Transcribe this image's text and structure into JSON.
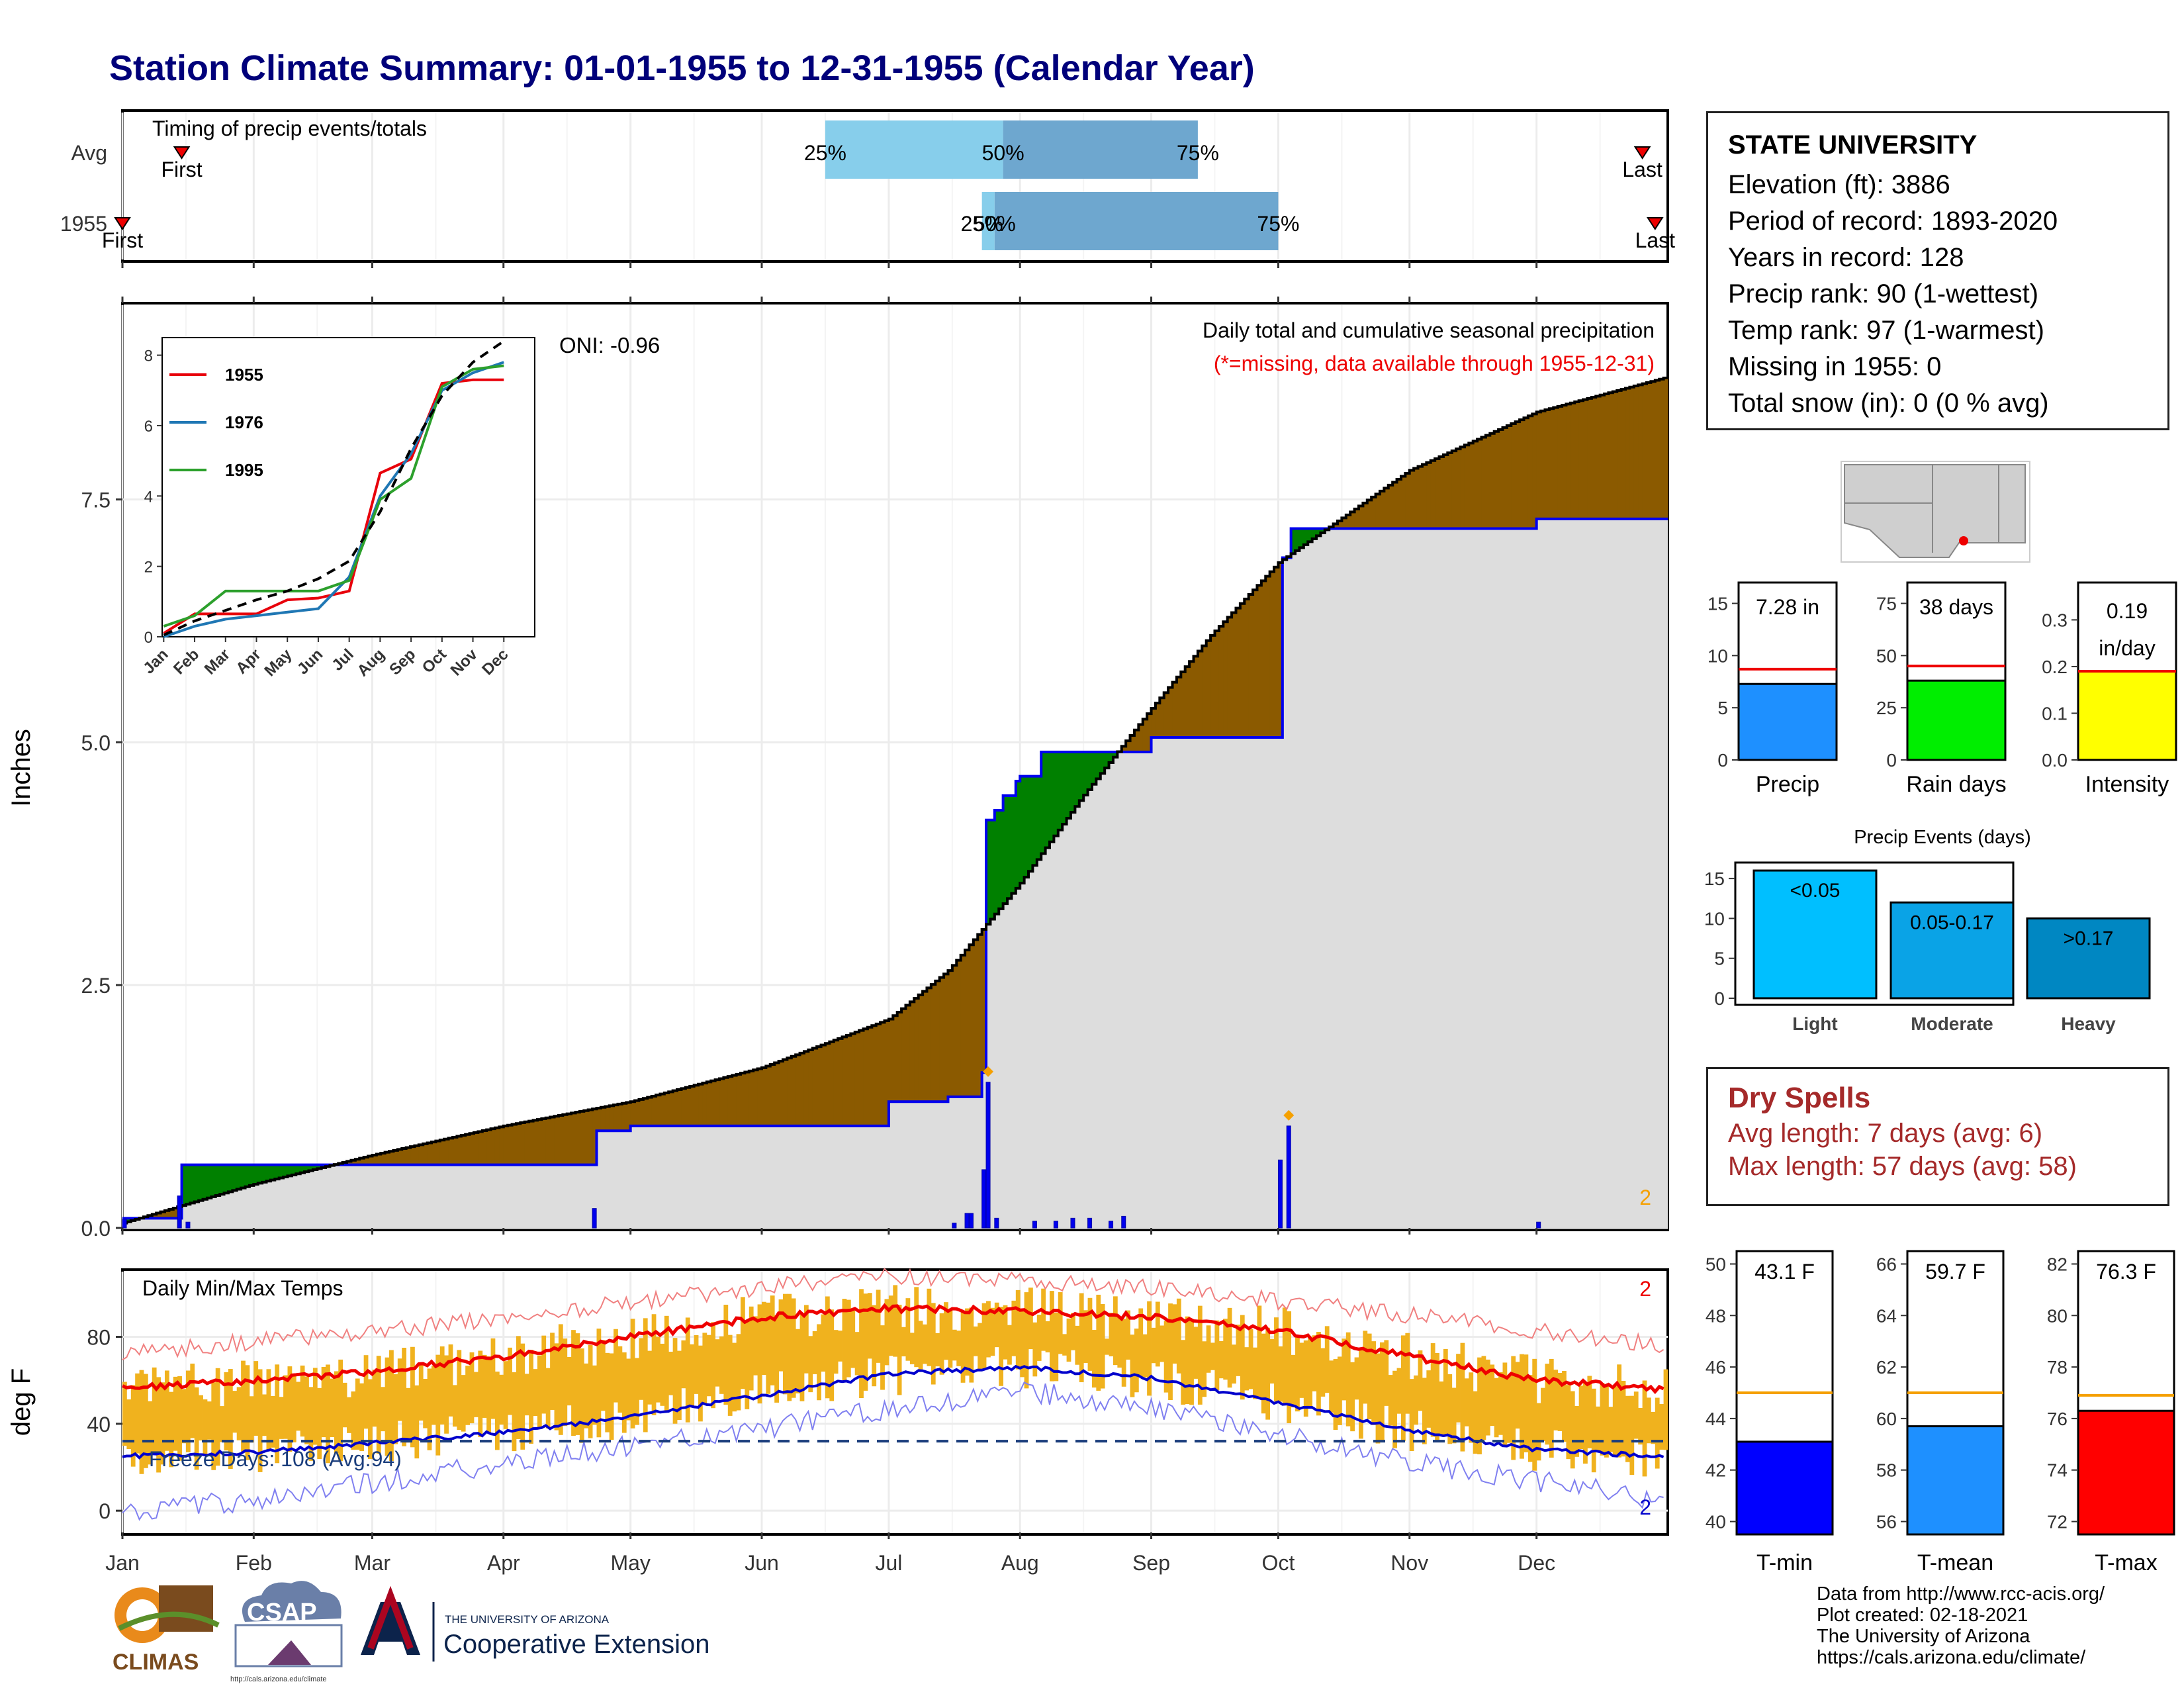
{
  "title": "Station Climate Summary: 01-01-1955 to 12-31-1955 (Calendar Year)",
  "timing": {
    "label": "Timing of precip events/totals",
    "rows": [
      "Avg",
      "1955"
    ],
    "avg": {
      "first": "Jan 15",
      "q25": "Jun 16",
      "q50": "Jul 28",
      "q75": "Sep 12",
      "last": "Dec 26"
    },
    "y1955": {
      "first": "Jan 1",
      "q25": "Jul 23",
      "q50": "Jul 26",
      "q75": "Oct 1",
      "last": "Dec 29"
    },
    "marks": {
      "first": "First",
      "last": "Last",
      "q25": "25%",
      "q50": "50%",
      "q75": "75%"
    }
  },
  "main": {
    "ylabel": "Inches",
    "yticks": [
      "0.0",
      "2.5",
      "5.0",
      "7.5"
    ],
    "caption": "Daily total and cumulative seasonal precipitation",
    "missing_note": "(*=missing, data available through 1955-12-31)",
    "oni": "ONI: -0.96",
    "corner": "2",
    "months": [
      "Jan",
      "Feb",
      "Mar",
      "Apr",
      "May",
      "Jun",
      "Jul",
      "Aug",
      "Sep",
      "Oct",
      "Nov",
      "Dec"
    ]
  },
  "chart_data": [
    {
      "type": "area",
      "caption": "Daily total and cumulative seasonal precipitation",
      "x_unit": "date (1955)",
      "ylabel": "Inches",
      "ylim": [
        0,
        9.5
      ],
      "series": [
        {
          "name": "cumulative observed 1955",
          "x": [
            "Jan 1",
            "Jan 14",
            "Jan 15",
            "Apr 22",
            "Apr 23",
            "May 1",
            "Jul 1",
            "Jul 15",
            "Jul 23",
            "Jul 24",
            "Jul 26",
            "Jul 28",
            "Jul 31",
            "Aug 1",
            "Aug 6",
            "Sep 1",
            "Oct 1",
            "Oct 2",
            "Oct 4",
            "Dec 1",
            "Dec 31"
          ],
          "y": [
            0.1,
            0.1,
            0.65,
            0.65,
            1.0,
            1.05,
            1.3,
            1.35,
            1.6,
            4.2,
            4.3,
            4.45,
            4.6,
            4.65,
            4.9,
            5.05,
            5.05,
            6.9,
            7.2,
            7.3,
            7.3
          ]
        },
        {
          "name": "cumulative average",
          "x": [
            "Jan 1",
            "Feb 1",
            "Mar 1",
            "Apr 1",
            "May 1",
            "Jun 1",
            "Jul 1",
            "Jul 15",
            "Aug 1",
            "Aug 15",
            "Sep 1",
            "Sep 15",
            "Oct 1",
            "Nov 1",
            "Dec 1",
            "Dec 31"
          ],
          "y": [
            0.05,
            0.45,
            0.75,
            1.05,
            1.3,
            1.65,
            2.15,
            2.65,
            3.55,
            4.4,
            5.35,
            6.1,
            6.85,
            7.8,
            8.4,
            8.75
          ]
        },
        {
          "name": "daily precip",
          "x": [
            "Jan 1",
            "Jan 14",
            "Jan 16",
            "Apr 22",
            "Jul 16",
            "Jul 19",
            "Jul 20",
            "Jul 23",
            "Jul 24",
            "Jul 26",
            "Aug 4",
            "Aug 9",
            "Aug 13",
            "Aug 17",
            "Aug 22",
            "Aug 25",
            "Oct 1",
            "Oct 3",
            "Dec 1"
          ],
          "y": [
            0.09,
            0.33,
            0.06,
            0.2,
            0.05,
            0.15,
            0.15,
            0.6,
            1.5,
            0.1,
            0.07,
            0.07,
            0.1,
            0.1,
            0.07,
            0.12,
            0.7,
            1.05,
            0.06
          ]
        }
      ]
    },
    {
      "type": "line",
      "name": "inset cumulative by year",
      "categories": [
        "Jan",
        "Feb",
        "Mar",
        "Apr",
        "May",
        "Jun",
        "Jul",
        "Aug",
        "Sep",
        "Oct",
        "Nov",
        "Dec"
      ],
      "ylim": [
        0,
        8.5
      ],
      "series": [
        {
          "name": "1955",
          "color": "#e8000b",
          "values": [
            0.1,
            0.65,
            0.65,
            0.65,
            1.05,
            1.1,
            1.3,
            4.65,
            5.05,
            7.2,
            7.3,
            7.3
          ]
        },
        {
          "name": "1976",
          "color": "#1f77b4",
          "values": [
            0.0,
            0.3,
            0.5,
            0.6,
            0.7,
            0.8,
            1.7,
            4.0,
            5.2,
            7.0,
            7.5,
            7.8
          ]
        },
        {
          "name": "1995",
          "color": "#2ca02c",
          "values": [
            0.3,
            0.6,
            1.3,
            1.3,
            1.3,
            1.3,
            1.6,
            3.9,
            4.5,
            7.1,
            7.6,
            7.7
          ]
        },
        {
          "name": "average",
          "values": [
            0.05,
            0.45,
            0.75,
            1.05,
            1.3,
            1.65,
            2.15,
            3.55,
            5.35,
            6.85,
            7.8,
            8.4
          ]
        }
      ]
    },
    {
      "type": "bar",
      "name": "totals",
      "categories": [
        "Precip",
        "Rain days",
        "Intensity"
      ],
      "values": [
        7.28,
        38,
        0.19
      ],
      "averages": [
        8.7,
        45,
        0.19
      ],
      "ylim": [
        [
          0,
          17
        ],
        [
          0,
          85
        ],
        [
          0,
          0.38
        ]
      ],
      "yticks": [
        [
          "0",
          "5",
          "10",
          "15"
        ],
        [
          "0",
          "25",
          "50",
          "75"
        ],
        [
          "0.0",
          "0.1",
          "0.2",
          "0.3"
        ]
      ],
      "labels": [
        "7.28 in",
        "38 days",
        "0.19",
        "in/day"
      ],
      "colors": [
        "#1e90ff",
        "#00ee00",
        "#ffff00"
      ]
    },
    {
      "type": "bar",
      "title": "Precip Events (days)",
      "categories": [
        "Light",
        "Moderate",
        "Heavy"
      ],
      "values": [
        16,
        12,
        10
      ],
      "labels": [
        "<0.05",
        "0.05-0.17",
        ">0.17"
      ],
      "yticks": [
        "0",
        "5",
        "10",
        "15"
      ],
      "ylim": [
        0,
        17
      ],
      "colors": [
        "#00bfff",
        "#0aa3e6",
        "#0087c2"
      ]
    },
    {
      "type": "area",
      "title": "Daily Min/Max Temps",
      "ylabel": "deg F",
      "ylim": [
        -10,
        110
      ],
      "yticks": [
        "0",
        "40",
        "80"
      ],
      "freeze_note": "Freeze Days: 108 (Avg:94)",
      "corner_top": "2",
      "corner_bottom": "2",
      "series": [
        {
          "name": "avg max",
          "color": "#ee0000",
          "x": [
            "Jan 1",
            "Feb 1",
            "Mar 1",
            "Apr 1",
            "May 1",
            "Jun 1",
            "Jul 1",
            "Aug 1",
            "Sep 1",
            "Oct 1",
            "Nov 1",
            "Dec 1",
            "Dec 31"
          ],
          "y": [
            56,
            60,
            64,
            71,
            80,
            89,
            93,
            92,
            89,
            83,
            71,
            60,
            56
          ]
        },
        {
          "name": "avg min",
          "color": "#0000cc",
          "x": [
            "Jan 1",
            "Feb 1",
            "Mar 1",
            "Apr 1",
            "May 1",
            "Jun 1",
            "Jul 1",
            "Aug 1",
            "Sep 1",
            "Oct 1",
            "Nov 1",
            "Dec 1",
            "Dec 31"
          ],
          "y": [
            25,
            27,
            31,
            36,
            43,
            53,
            63,
            66,
            61,
            50,
            37,
            28,
            25
          ]
        },
        {
          "name": "record max",
          "x": [
            "Jan 1",
            "Mar 1",
            "Jun 1",
            "Jul 1",
            "Sep 1",
            "Nov 1",
            "Dec 31"
          ],
          "y": [
            73,
            82,
            103,
            108,
            103,
            90,
            76
          ]
        },
        {
          "name": "record min",
          "x": [
            "Jan 1",
            "Feb 1",
            "Apr 1",
            "Jun 1",
            "Aug 1",
            "Sep 1",
            "Nov 1",
            "Dec 31"
          ],
          "y": [
            0,
            5,
            22,
            38,
            55,
            48,
            22,
            5
          ]
        }
      ]
    },
    {
      "type": "bar",
      "name": "temperature means",
      "categories": [
        "T-min",
        "T-mean",
        "T-max"
      ],
      "values": [
        43.1,
        59.7,
        76.3
      ],
      "averages": [
        45.0,
        61.0,
        76.9
      ],
      "labels": [
        "43.1 F",
        "59.7 F",
        "76.3 F"
      ],
      "ylims": [
        [
          39.5,
          50.5
        ],
        [
          55.5,
          66.5
        ],
        [
          71.5,
          82.5
        ]
      ],
      "yticks": [
        [
          "40",
          "42",
          "44",
          "46",
          "48",
          "50"
        ],
        [
          "56",
          "58",
          "60",
          "62",
          "64",
          "66"
        ],
        [
          "72",
          "74",
          "76",
          "78",
          "80",
          "82"
        ]
      ],
      "colors": [
        "#0000ff",
        "#1e90ff",
        "#ff0000"
      ]
    }
  ],
  "station": {
    "name": "STATE UNIVERSITY",
    "lines": [
      "Elevation (ft): 3886",
      "Period of record: 1893-2020",
      "Years in record: 128",
      "Precip rank: 90 (1-wettest)",
      "Temp rank: 97 (1-warmest)",
      "Missing in 1955: 0",
      "Total snow (in): 0 (0 % avg)"
    ]
  },
  "dry_spells": {
    "title": "Dry Spells",
    "avg": "Avg length: 7 days (avg: 6)",
    "max": "Max length: 57 days (avg: 58)"
  },
  "footer": {
    "lines": [
      "Data from http://www.rcc-acis.org/",
      "Plot created: 02-18-2021",
      "The University of Arizona",
      "https://cals.arizona.edu/climate/"
    ],
    "logo_climas": "CLIMAS",
    "logo_csap": "CSAP",
    "logo_csap_url": "http://cals.arizona.edu/climate",
    "logo_ua_small": "THE UNIVERSITY OF ARIZONA",
    "logo_ua_big": "Cooperative Extension"
  }
}
